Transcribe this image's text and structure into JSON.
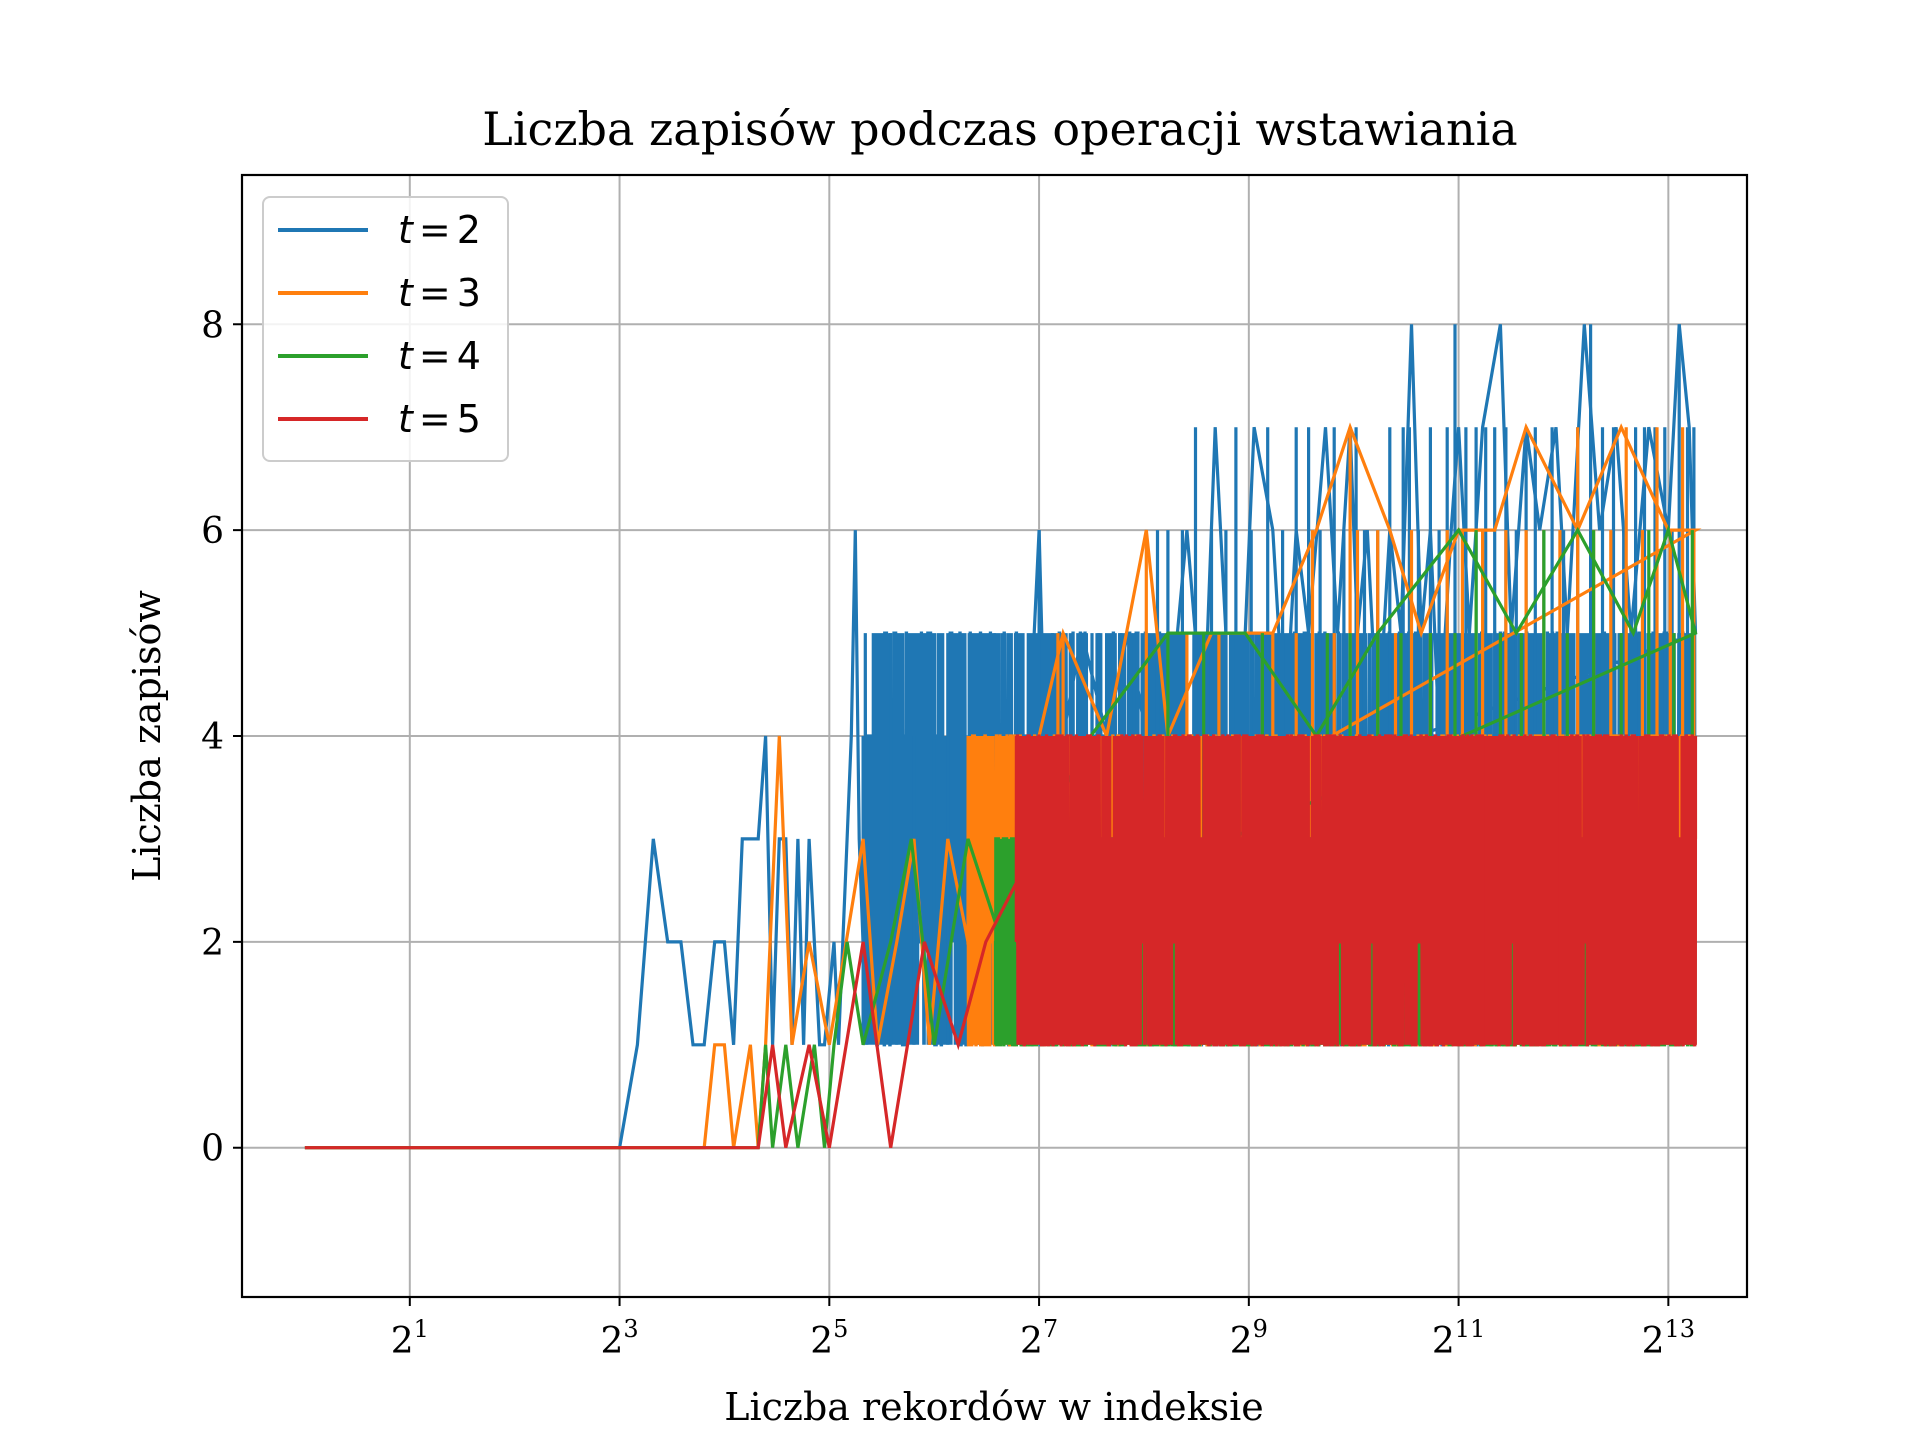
{
  "chart_data": {
    "type": "line",
    "title": "Liczba zapisów podczas operacji wstawiania",
    "xlabel": "Liczba rekordów w indeksie",
    "ylabel": "Liczba zapisów",
    "x_scale": "log2",
    "x_range_exponent": [
      -0.6,
      13.75
    ],
    "xlim": [
      0.66,
      13777
    ],
    "ylim": [
      -1.45,
      9.45
    ],
    "x_ticks": [
      {
        "value": 2,
        "base": "2",
        "exp": "1"
      },
      {
        "value": 8,
        "base": "2",
        "exp": "3"
      },
      {
        "value": 32,
        "base": "2",
        "exp": "5"
      },
      {
        "value": 128,
        "base": "2",
        "exp": "7"
      },
      {
        "value": 512,
        "base": "2",
        "exp": "9"
      },
      {
        "value": 2048,
        "base": "2",
        "exp": "11"
      },
      {
        "value": 8192,
        "base": "2",
        "exp": "13"
      }
    ],
    "y_ticks": [
      0,
      2,
      4,
      6,
      8
    ],
    "y_tick_labels": [
      "0",
      "2",
      "4",
      "6",
      "8"
    ],
    "grid": true,
    "legend_position": "top-left",
    "series": [
      {
        "name_var": "t",
        "name_value": "2",
        "color": "#1f77b4",
        "values_summary": "0 for 1–7 records; rises to 1–3 around 8–12; 1–6 between 16 and 128; 1–8 up to ~9800 records",
        "points": [
          [
            1,
            0
          ],
          [
            8,
            0
          ],
          [
            9,
            1
          ],
          [
            10,
            3
          ],
          [
            11,
            2
          ],
          [
            12,
            2
          ],
          [
            13,
            1
          ],
          [
            14,
            1
          ],
          [
            15,
            2
          ],
          [
            16,
            2
          ],
          [
            17,
            1
          ],
          [
            18,
            3
          ],
          [
            20,
            3
          ],
          [
            21,
            4
          ],
          [
            22,
            1
          ],
          [
            23,
            3
          ],
          [
            24,
            3
          ],
          [
            25,
            1
          ],
          [
            26,
            3
          ],
          [
            27,
            1
          ],
          [
            28,
            3
          ],
          [
            30,
            1
          ],
          [
            31,
            1
          ],
          [
            33,
            2
          ],
          [
            34,
            1
          ],
          [
            36,
            3
          ],
          [
            37,
            4
          ],
          [
            38,
            6
          ],
          [
            39,
            3
          ],
          [
            41,
            1
          ],
          [
            43,
            2
          ],
          [
            46,
            4
          ],
          [
            47,
            5
          ],
          [
            50,
            1
          ],
          [
            55,
            4
          ],
          [
            60,
            3
          ],
          [
            66,
            4
          ],
          [
            72,
            2
          ],
          [
            80,
            4
          ],
          [
            90,
            1
          ],
          [
            95,
            5
          ],
          [
            100,
            3
          ],
          [
            110,
            4
          ],
          [
            120,
            4
          ],
          [
            128,
            6
          ],
          [
            135,
            3
          ],
          [
            150,
            4
          ],
          [
            170,
            5
          ],
          [
            200,
            4
          ],
          [
            230,
            5
          ],
          [
            260,
            4
          ],
          [
            300,
            4
          ],
          [
            340,
            6
          ],
          [
            380,
            4
          ],
          [
            410,
            7
          ],
          [
            440,
            5
          ],
          [
            500,
            5
          ],
          [
            530,
            7
          ],
          [
            600,
            6
          ],
          [
            650,
            4
          ],
          [
            700,
            6
          ],
          [
            760,
            5
          ],
          [
            850,
            7
          ],
          [
            920,
            5
          ],
          [
            1000,
            7
          ],
          [
            1050,
            5
          ],
          [
            1120,
            6
          ],
          [
            1200,
            4
          ],
          [
            1300,
            6
          ],
          [
            1400,
            5
          ],
          [
            1500,
            8
          ],
          [
            1600,
            5
          ],
          [
            1700,
            6
          ],
          [
            1800,
            4
          ],
          [
            1950,
            6
          ],
          [
            2048,
            7
          ],
          [
            2200,
            5
          ],
          [
            2400,
            7
          ],
          [
            2700,
            8
          ],
          [
            2900,
            5
          ],
          [
            3200,
            7
          ],
          [
            3500,
            6
          ],
          [
            3900,
            7
          ],
          [
            4200,
            5
          ],
          [
            4700,
            8
          ],
          [
            5200,
            6
          ],
          [
            5800,
            7
          ],
          [
            6400,
            5
          ],
          [
            7200,
            7
          ],
          [
            8192,
            6
          ],
          [
            8800,
            8
          ],
          [
            9400,
            7
          ],
          [
            9800,
            5
          ]
        ],
        "band_start": 40,
        "band_end": 9800,
        "band": [
          1,
          5
        ],
        "spikes": [
          [
            40,
            4
          ],
          [
            48,
            5
          ],
          [
            56,
            4
          ],
          [
            64,
            4
          ],
          [
            70,
            5
          ],
          [
            86,
            4
          ],
          [
            100,
            4
          ],
          [
            110,
            5
          ],
          [
            128,
            6
          ],
          [
            140,
            5
          ],
          [
            160,
            5
          ],
          [
            190,
            5
          ],
          [
            220,
            5
          ],
          [
            240,
            5
          ],
          [
            280,
            6
          ],
          [
            300,
            6
          ],
          [
            330,
            6
          ],
          [
            360,
            7
          ],
          [
            400,
            6
          ],
          [
            440,
            6
          ],
          [
            470,
            7
          ],
          [
            520,
            6
          ],
          [
            580,
            7
          ],
          [
            640,
            6
          ],
          [
            700,
            7
          ],
          [
            760,
            7
          ],
          [
            820,
            6
          ],
          [
            900,
            7
          ],
          [
            960,
            6
          ],
          [
            1040,
            7
          ],
          [
            1100,
            6
          ],
          [
            1200,
            6
          ],
          [
            1300,
            7
          ],
          [
            1420,
            7
          ],
          [
            1480,
            7
          ],
          [
            1570,
            6
          ],
          [
            1700,
            7
          ],
          [
            1800,
            6
          ],
          [
            1900,
            7
          ],
          [
            2000,
            8
          ],
          [
            2150,
            7
          ],
          [
            2300,
            7
          ],
          [
            2450,
            7
          ],
          [
            2600,
            7
          ],
          [
            2800,
            7
          ],
          [
            3000,
            6
          ],
          [
            3200,
            7
          ],
          [
            3400,
            7
          ],
          [
            3600,
            6
          ],
          [
            3800,
            7
          ],
          [
            4100,
            6
          ],
          [
            4500,
            7
          ],
          [
            4900,
            8
          ],
          [
            5300,
            7
          ],
          [
            5700,
            7
          ],
          [
            6100,
            6
          ],
          [
            6600,
            7
          ],
          [
            7000,
            7
          ],
          [
            7500,
            7
          ],
          [
            8000,
            7
          ],
          [
            8400,
            6
          ],
          [
            8800,
            8
          ],
          [
            9300,
            7
          ],
          [
            9700,
            7
          ]
        ]
      },
      {
        "name_var": "t",
        "name_value": "3",
        "color": "#ff7f0e",
        "values_summary": "0 up to ~14 records; 1–4 between 15 and 128; 1–7 up to ~9800 records",
        "points": [
          [
            1,
            0
          ],
          [
            14,
            0
          ],
          [
            15,
            1
          ],
          [
            16,
            1
          ],
          [
            17,
            0
          ],
          [
            19,
            1
          ],
          [
            20,
            0
          ],
          [
            21,
            1
          ],
          [
            23,
            4
          ],
          [
            25,
            1
          ],
          [
            28,
            2
          ],
          [
            32,
            1
          ],
          [
            40,
            3
          ],
          [
            44,
            1
          ],
          [
            50,
            2
          ],
          [
            56,
            3
          ],
          [
            62,
            1
          ],
          [
            70,
            3
          ],
          [
            80,
            2
          ],
          [
            96,
            3
          ],
          [
            110,
            2
          ],
          [
            128,
            4
          ],
          [
            150,
            5
          ],
          [
            200,
            4
          ],
          [
            260,
            6
          ],
          [
            300,
            4
          ],
          [
            400,
            5
          ],
          [
            600,
            5
          ],
          [
            800,
            6
          ],
          [
            1000,
            7
          ],
          [
            1300,
            6
          ],
          [
            1600,
            5
          ],
          [
            2048,
            6
          ],
          [
            2600,
            6
          ],
          [
            3200,
            7
          ],
          [
            4500,
            6
          ],
          [
            6000,
            7
          ],
          [
            8192,
            6
          ],
          [
            9800,
            6
          ]
        ],
        "band_start": 80,
        "band_end": 9800,
        "band": [
          1,
          4
        ],
        "spikes": [
          [
            110,
            3
          ],
          [
            145,
            5
          ],
          [
            150,
            5
          ],
          [
            180,
            4
          ],
          [
            210,
            4
          ],
          [
            260,
            6
          ],
          [
            290,
            4
          ],
          [
            340,
            5
          ],
          [
            420,
            5
          ],
          [
            560,
            5
          ],
          [
            600,
            5
          ],
          [
            700,
            5
          ],
          [
            780,
            6
          ],
          [
            900,
            5
          ],
          [
            1000,
            7
          ],
          [
            1050,
            6
          ],
          [
            1200,
            6
          ],
          [
            1350,
            5
          ],
          [
            1500,
            6
          ],
          [
            1700,
            5
          ],
          [
            1900,
            6
          ],
          [
            2100,
            6
          ],
          [
            2400,
            6
          ],
          [
            2800,
            6
          ],
          [
            3200,
            6
          ],
          [
            3600,
            6
          ],
          [
            4000,
            6
          ],
          [
            4500,
            7
          ],
          [
            5000,
            6
          ],
          [
            5600,
            6
          ],
          [
            6200,
            7
          ],
          [
            6900,
            6
          ],
          [
            7600,
            7
          ],
          [
            8300,
            6
          ],
          [
            9000,
            7
          ],
          [
            9700,
            6
          ]
        ]
      },
      {
        "name_var": "t",
        "name_value": "4",
        "color": "#2ca02c",
        "values_summary": "0 up to ~20 records; 1–3 between 20 and 128; 1–5 up to ~9800 records",
        "points": [
          [
            1,
            0
          ],
          [
            20,
            0
          ],
          [
            21,
            1
          ],
          [
            22,
            0
          ],
          [
            24,
            1
          ],
          [
            26,
            0
          ],
          [
            29,
            1
          ],
          [
            31,
            0
          ],
          [
            33,
            1
          ],
          [
            36,
            2
          ],
          [
            40,
            1
          ],
          [
            48,
            2
          ],
          [
            55,
            3
          ],
          [
            64,
            1
          ],
          [
            80,
            3
          ],
          [
            100,
            2
          ],
          [
            128,
            3
          ],
          [
            180,
            4
          ],
          [
            300,
            5
          ],
          [
            500,
            5
          ],
          [
            800,
            4
          ],
          [
            1200,
            5
          ],
          [
            2048,
            6
          ],
          [
            3000,
            5
          ],
          [
            4500,
            6
          ],
          [
            6500,
            5
          ],
          [
            8192,
            6
          ],
          [
            9800,
            5
          ]
        ],
        "band_start": 96,
        "band_end": 9800,
        "band": [
          1,
          3
        ],
        "spikes": [
          [
            110,
            3
          ],
          [
            160,
            4
          ],
          [
            220,
            4
          ],
          [
            300,
            5
          ],
          [
            380,
            5
          ],
          [
            480,
            4
          ],
          [
            560,
            5
          ],
          [
            700,
            4
          ],
          [
            860,
            5
          ],
          [
            1000,
            5
          ],
          [
            1200,
            5
          ],
          [
            1400,
            5
          ],
          [
            1700,
            5
          ],
          [
            2000,
            5
          ],
          [
            2300,
            6
          ],
          [
            2700,
            5
          ],
          [
            3100,
            5
          ],
          [
            3600,
            6
          ],
          [
            4200,
            5
          ],
          [
            5000,
            6
          ],
          [
            6000,
            5
          ],
          [
            7200,
            6
          ],
          [
            8500,
            5
          ],
          [
            9600,
            6
          ]
        ]
      },
      {
        "name_var": "t",
        "name_value": "5",
        "color": "#d62728",
        "values_summary": "0 up to ~20 records; 0–2 between 20 and 100; 1–4 up to ~9800 records",
        "points": [
          [
            1,
            0
          ],
          [
            20,
            0
          ],
          [
            22,
            1
          ],
          [
            24,
            0
          ],
          [
            28,
            1
          ],
          [
            32,
            0
          ],
          [
            40,
            2
          ],
          [
            48,
            0
          ],
          [
            60,
            2
          ],
          [
            75,
            1
          ],
          [
            90,
            2
          ],
          [
            128,
            3
          ],
          [
            9800,
            3
          ]
        ],
        "band_start": 110,
        "band_end": 9800,
        "band": [
          1,
          4
        ],
        "spikes": [
          [
            2400,
            4
          ],
          [
            4000,
            4
          ]
        ]
      }
    ]
  }
}
